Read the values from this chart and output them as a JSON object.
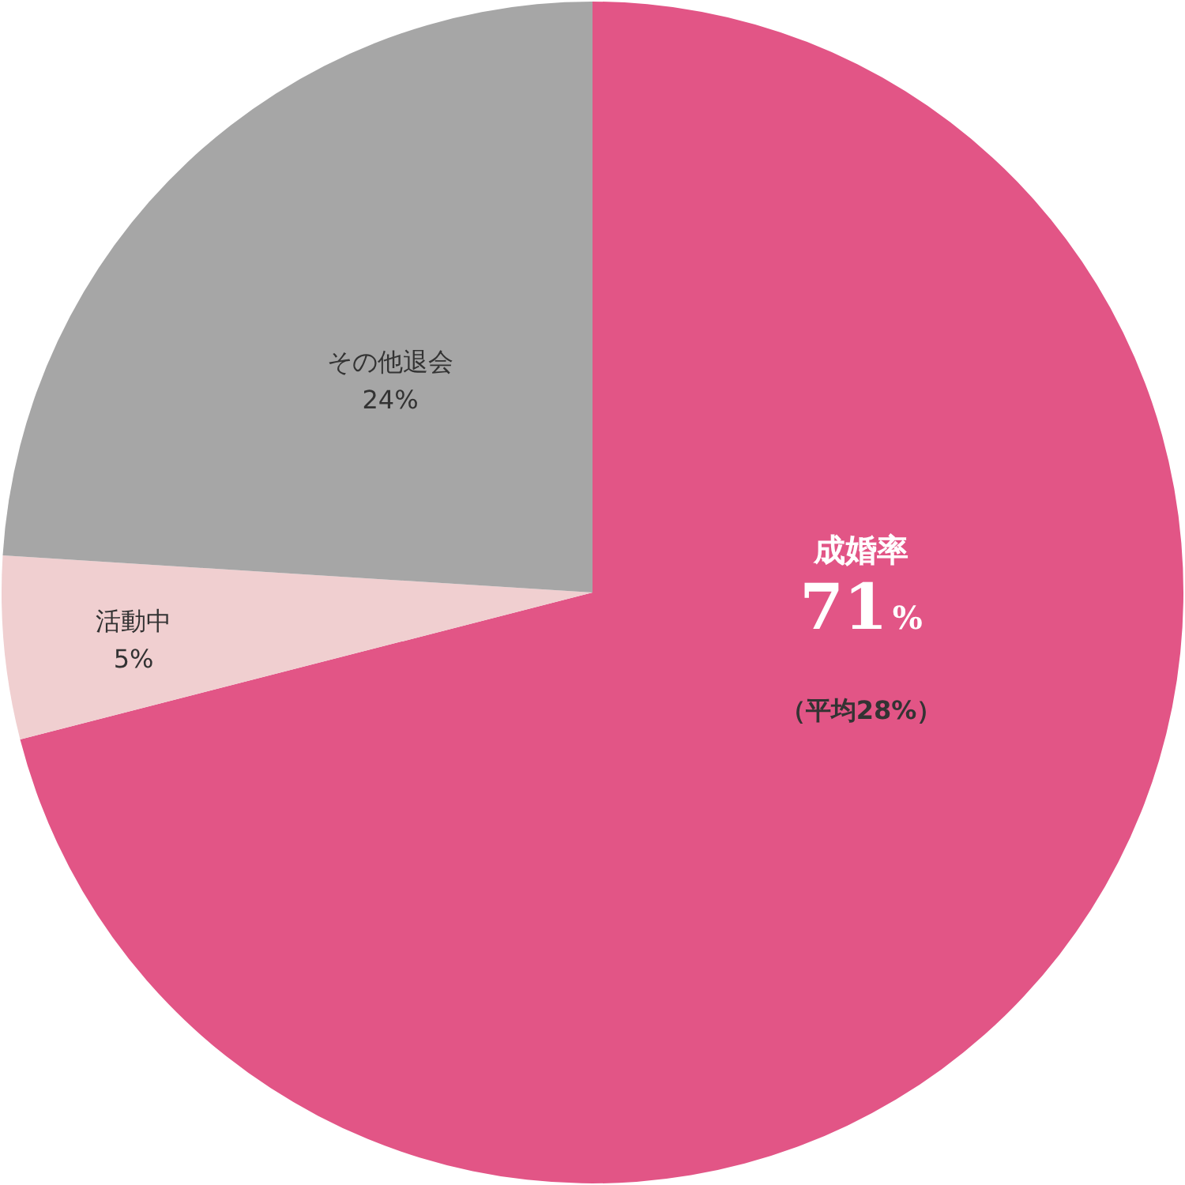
{
  "chart_data": {
    "type": "pie",
    "categories": [
      "成婚率",
      "活動中",
      "その他退会"
    ],
    "values": [
      71,
      5,
      24
    ],
    "colors": [
      "#e25586",
      "#f0cfd0",
      "#a6a6a6"
    ],
    "value_labels": [
      "71%",
      "5%",
      "24%"
    ],
    "annotations": [
      "（平均28%）"
    ]
  }
}
